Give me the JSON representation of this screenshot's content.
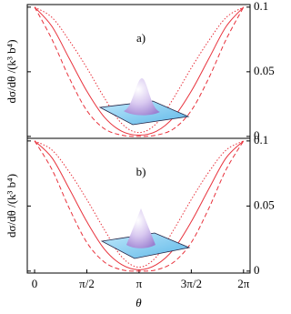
{
  "chart_data": [
    {
      "type": "line",
      "panel_label": "a)",
      "y_label": "dσ/dθ /(k³ b⁴)",
      "x": [
        0,
        0.5236,
        1.0472,
        1.5708,
        2.0944,
        2.618,
        3.1416,
        3.6652,
        4.1888,
        4.7124,
        5.236,
        5.7596,
        6.2832
      ],
      "series": [
        {
          "color": "#e8323c",
          "style": "solid",
          "values": [
            0.1,
            0.085,
            0.06,
            0.035,
            0.015,
            0.004,
            0.001,
            0.004,
            0.015,
            0.035,
            0.06,
            0.085,
            0.1
          ]
        },
        {
          "color": "#e8323c",
          "style": "dashed",
          "values": [
            0.1,
            0.075,
            0.045,
            0.02,
            0.006,
            0.001,
            0,
            0.001,
            0.006,
            0.02,
            0.045,
            0.075,
            0.1
          ]
        },
        {
          "color": "#e8323c",
          "style": "dotted",
          "values": [
            0.1,
            0.092,
            0.074,
            0.053,
            0.03,
            0.01,
            0.003,
            0.01,
            0.03,
            0.053,
            0.074,
            0.092,
            0.1
          ]
        }
      ],
      "xlim": [
        -0.22,
        6.48
      ],
      "ylim": [
        -0.0015,
        0.102
      ],
      "yticks": [
        0,
        0.05,
        0.1
      ]
    },
    {
      "type": "line",
      "panel_label": "b)",
      "y_label": "dσ/dθ /(k³ b⁴)",
      "x_label": "θ",
      "x": [
        0,
        0.5236,
        1.0472,
        1.5708,
        2.0944,
        2.618,
        3.1416,
        3.6652,
        4.1888,
        4.7124,
        5.236,
        5.7596,
        6.2832
      ],
      "series": [
        {
          "color": "#e8323c",
          "style": "solid",
          "values": [
            0.1,
            0.087,
            0.063,
            0.038,
            0.017,
            0.005,
            0.001,
            0.005,
            0.017,
            0.038,
            0.063,
            0.087,
            0.1
          ]
        },
        {
          "color": "#e8323c",
          "style": "dashed",
          "values": [
            0.1,
            0.078,
            0.048,
            0.022,
            0.007,
            0.001,
            0,
            0.001,
            0.007,
            0.022,
            0.048,
            0.078,
            0.1
          ]
        },
        {
          "color": "#e8323c",
          "style": "dotted",
          "values": [
            0.1,
            0.093,
            0.076,
            0.055,
            0.032,
            0.011,
            0.003,
            0.011,
            0.032,
            0.055,
            0.076,
            0.093,
            0.1
          ]
        }
      ],
      "xlim": [
        -0.22,
        6.48
      ],
      "ylim": [
        -0.0015,
        0.102
      ],
      "yticks": [
        0,
        0.05,
        0.1
      ],
      "xticks": [
        0,
        {
          "value": 1.5708,
          "label": "π/2"
        },
        {
          "value": 3.1416,
          "label": "π"
        },
        {
          "value": 4.7124,
          "label": "3π/2"
        },
        {
          "value": 6.2832,
          "label": "2π"
        }
      ]
    }
  ]
}
